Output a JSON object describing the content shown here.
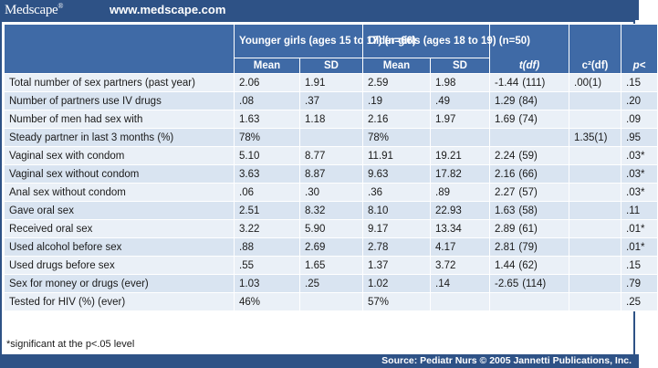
{
  "header": {
    "logo_text": "Medscape",
    "logo_mark": "®",
    "site_url": "www.medscape.com"
  },
  "table": {
    "group_headers": {
      "younger": "Younger girls (ages 15 to 17) (n=66)",
      "older": "Older girls (ages 18 to 19) (n=50)",
      "tdf": "t(df)",
      "c2df": "c²(df)",
      "p": "p<"
    },
    "sub_headers": {
      "mean": "Mean",
      "sd": "SD"
    },
    "rows": [
      {
        "label": "Total number of sex partners (past year)",
        "y_mean": "2.06",
        "y_sd": "1.91",
        "o_mean": "2.59",
        "o_sd": "1.98",
        "t": "-1.44",
        "df": "(111)",
        "c2": ".00(1)",
        "p": ".15"
      },
      {
        "label": "Number of partners use IV drugs",
        "y_mean": ".08",
        "y_sd": ".37",
        "o_mean": ".19",
        "o_sd": ".49",
        "t": "1.29",
        "df": "(84)",
        "c2": "",
        "p": ".20"
      },
      {
        "label": "Number of men had sex with",
        "y_mean": "1.63",
        "y_sd": "1.18",
        "o_mean": "2.16",
        "o_sd": "1.97",
        "t": "1.69",
        "df": "(74)",
        "c2": "",
        "p": ".09"
      },
      {
        "label": "Steady partner in last 3 months (%)",
        "y_mean": "78%",
        "y_sd": "",
        "o_mean": "78%",
        "o_sd": "",
        "t": "",
        "df": "",
        "c2": "1.35(1)",
        "p": ".95"
      },
      {
        "label": "Vaginal sex with condom",
        "y_mean": "5.10",
        "y_sd": "8.77",
        "o_mean": "11.91",
        "o_sd": "19.21",
        "t": "2.24",
        "df": "(59)",
        "c2": "",
        "p": ".03*"
      },
      {
        "label": "Vaginal sex without condom",
        "y_mean": "3.63",
        "y_sd": "8.87",
        "o_mean": "9.63",
        "o_sd": "17.82",
        "t": "2.16",
        "df": "(66)",
        "c2": "",
        "p": ".03*"
      },
      {
        "label": "Anal sex without condom",
        "y_mean": ".06",
        "y_sd": ".30",
        "o_mean": ".36",
        "o_sd": ".89",
        "t": "2.27",
        "df": "(57)",
        "c2": "",
        "p": ".03*"
      },
      {
        "label": "Gave oral sex",
        "y_mean": "2.51",
        "y_sd": "8.32",
        "o_mean": "8.10",
        "o_sd": "22.93",
        "t": "1.63",
        "df": "(58)",
        "c2": "",
        "p": ".11"
      },
      {
        "label": "Received oral sex",
        "y_mean": "3.22",
        "y_sd": "5.90",
        "o_mean": "9.17",
        "o_sd": "13.34",
        "t": "2.89",
        "df": "(61)",
        "c2": "",
        "p": ".01*"
      },
      {
        "label": "Used alcohol before sex",
        "y_mean": ".88",
        "y_sd": "2.69",
        "o_mean": "2.78",
        "o_sd": "4.17",
        "t": "2.81",
        "df": "(79)",
        "c2": "",
        "p": ".01*"
      },
      {
        "label": "Used drugs before sex",
        "y_mean": ".55",
        "y_sd": "1.65",
        "o_mean": "1.37",
        "o_sd": "3.72",
        "t": "1.44",
        "df": "(62)",
        "c2": "",
        "p": ".15"
      },
      {
        "label": "Sex for money or drugs (ever)",
        "y_mean": "1.03",
        "y_sd": ".25",
        "o_mean": "1.02",
        "o_sd": ".14",
        "t": "-2.65",
        "df": "(114)",
        "c2": "",
        "p": ".79"
      },
      {
        "label": "Tested for HIV (%) (ever)",
        "y_mean": "46%",
        "y_sd": "",
        "o_mean": "57%",
        "o_sd": "",
        "t": "",
        "df": "",
        "c2": "",
        "p": ".25"
      }
    ]
  },
  "footnote": "*significant at the p<.05 level",
  "source": "Source: Pediatr Nurs © 2005 Jannetti Publications, Inc."
}
